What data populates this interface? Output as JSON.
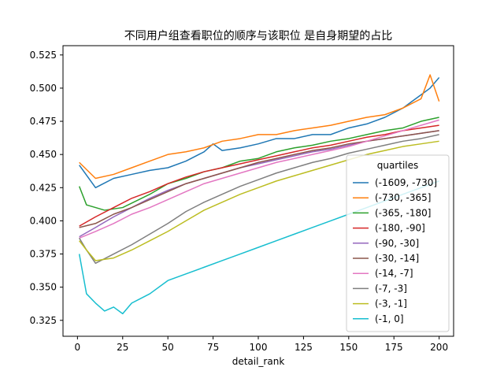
{
  "chart_data": {
    "type": "line",
    "title": "不同用户组查看职位的顺序与该职位 是自身期望的占比",
    "xlabel": "detail_rank",
    "ylabel": "",
    "xlim": [
      -8,
      208
    ],
    "ylim": [
      0.313,
      0.532
    ],
    "xticks": [
      0,
      25,
      50,
      75,
      100,
      125,
      150,
      175,
      200
    ],
    "yticks": [
      0.325,
      0.35,
      0.375,
      0.4,
      0.425,
      0.45,
      0.475,
      0.5,
      0.525
    ],
    "ytick_labels": [
      "0.325",
      "0.350",
      "0.375",
      "0.400",
      "0.425",
      "0.450",
      "0.475",
      "0.500",
      "0.525"
    ],
    "grid": false,
    "legend": {
      "title": "quartiles",
      "placement": "lower-right"
    },
    "series": [
      {
        "name": "(-1609, -730]",
        "color": "#1f77b4",
        "x": [
          1,
          10,
          20,
          30,
          40,
          50,
          60,
          70,
          75,
          80,
          90,
          100,
          110,
          120,
          130,
          140,
          150,
          160,
          170,
          180,
          185,
          190,
          195,
          200
        ],
        "y": [
          0.442,
          0.425,
          0.432,
          0.435,
          0.438,
          0.44,
          0.445,
          0.452,
          0.458,
          0.453,
          0.455,
          0.458,
          0.462,
          0.462,
          0.465,
          0.465,
          0.47,
          0.473,
          0.478,
          0.485,
          0.49,
          0.495,
          0.5,
          0.508
        ]
      },
      {
        "name": "(-730, -365]",
        "color": "#ff7f0e",
        "x": [
          1,
          10,
          20,
          30,
          40,
          50,
          60,
          70,
          80,
          90,
          100,
          110,
          120,
          130,
          140,
          150,
          160,
          170,
          180,
          190,
          195,
          200
        ],
        "y": [
          0.444,
          0.432,
          0.435,
          0.44,
          0.445,
          0.45,
          0.452,
          0.455,
          0.46,
          0.462,
          0.465,
          0.465,
          0.468,
          0.47,
          0.472,
          0.475,
          0.478,
          0.48,
          0.485,
          0.492,
          0.51,
          0.49
        ]
      },
      {
        "name": "(-365, -180]",
        "color": "#2ca02c",
        "x": [
          1,
          5,
          15,
          25,
          40,
          50,
          60,
          70,
          80,
          90,
          100,
          110,
          120,
          130,
          140,
          150,
          160,
          170,
          180,
          190,
          200
        ],
        "y": [
          0.426,
          0.412,
          0.408,
          0.41,
          0.42,
          0.428,
          0.432,
          0.437,
          0.44,
          0.445,
          0.447,
          0.452,
          0.455,
          0.457,
          0.46,
          0.462,
          0.465,
          0.468,
          0.47,
          0.475,
          0.478
        ]
      },
      {
        "name": "(-180, -90]",
        "color": "#d62728",
        "x": [
          1,
          10,
          20,
          30,
          40,
          50,
          60,
          70,
          80,
          90,
          100,
          110,
          120,
          130,
          140,
          150,
          160,
          170,
          180,
          190,
          200
        ],
        "y": [
          0.396,
          0.403,
          0.41,
          0.417,
          0.422,
          0.428,
          0.433,
          0.437,
          0.44,
          0.443,
          0.446,
          0.449,
          0.452,
          0.455,
          0.457,
          0.46,
          0.463,
          0.465,
          0.468,
          0.47,
          0.472
        ]
      },
      {
        "name": "(-90, -30]",
        "color": "#9467bd",
        "x": [
          1,
          10,
          20,
          30,
          40,
          50,
          60,
          70,
          80,
          90,
          100,
          110,
          120,
          130,
          140,
          150,
          160,
          170,
          180,
          190,
          200
        ],
        "y": [
          0.388,
          0.395,
          0.403,
          0.41,
          0.417,
          0.423,
          0.428,
          0.432,
          0.436,
          0.44,
          0.443,
          0.446,
          0.449,
          0.452,
          0.454,
          0.457,
          0.46,
          0.462,
          0.464,
          0.466,
          0.468
        ]
      },
      {
        "name": "(-30, -14]",
        "color": "#8c564b",
        "x": [
          1,
          10,
          20,
          30,
          40,
          50,
          60,
          70,
          80,
          90,
          100,
          110,
          120,
          130,
          140,
          150,
          160,
          170,
          180,
          190,
          200
        ],
        "y": [
          0.395,
          0.398,
          0.405,
          0.41,
          0.416,
          0.422,
          0.428,
          0.432,
          0.436,
          0.44,
          0.444,
          0.447,
          0.45,
          0.453,
          0.455,
          0.458,
          0.46,
          0.462,
          0.464,
          0.466,
          0.468
        ]
      },
      {
        "name": "(-14, -7]",
        "color": "#e377c2",
        "x": [
          1,
          10,
          20,
          30,
          40,
          50,
          60,
          70,
          80,
          90,
          100,
          110,
          120,
          130,
          140,
          150,
          160,
          170,
          180,
          190,
          200
        ],
        "y": [
          0.387,
          0.392,
          0.398,
          0.405,
          0.41,
          0.416,
          0.422,
          0.428,
          0.432,
          0.436,
          0.44,
          0.444,
          0.447,
          0.45,
          0.453,
          0.456,
          0.46,
          0.464,
          0.468,
          0.472,
          0.476
        ]
      },
      {
        "name": "(-7, -3]",
        "color": "#7f7f7f",
        "x": [
          1,
          5,
          10,
          20,
          30,
          40,
          50,
          60,
          70,
          80,
          90,
          100,
          110,
          120,
          130,
          140,
          150,
          160,
          170,
          180,
          190,
          200
        ],
        "y": [
          0.387,
          0.378,
          0.368,
          0.375,
          0.382,
          0.39,
          0.398,
          0.407,
          0.414,
          0.42,
          0.426,
          0.431,
          0.436,
          0.44,
          0.444,
          0.447,
          0.451,
          0.454,
          0.457,
          0.46,
          0.462,
          0.465
        ]
      },
      {
        "name": "(-3, -1]",
        "color": "#bcbd22",
        "x": [
          1,
          5,
          10,
          20,
          30,
          40,
          50,
          60,
          70,
          80,
          90,
          100,
          110,
          120,
          130,
          140,
          150,
          160,
          170,
          180,
          190,
          200
        ],
        "y": [
          0.385,
          0.378,
          0.37,
          0.372,
          0.378,
          0.385,
          0.392,
          0.4,
          0.408,
          0.414,
          0.42,
          0.425,
          0.43,
          0.434,
          0.438,
          0.442,
          0.446,
          0.45,
          0.453,
          0.456,
          0.458,
          0.46
        ]
      },
      {
        "name": "(-1, 0]",
        "color": "#17becf",
        "x": [
          1,
          5,
          10,
          15,
          20,
          25,
          30,
          40,
          50,
          60,
          70,
          80,
          90,
          100,
          110,
          120,
          130,
          140,
          150,
          160,
          170,
          180,
          190,
          200
        ],
        "y": [
          0.375,
          0.345,
          0.338,
          0.332,
          0.335,
          0.33,
          0.338,
          0.345,
          0.355,
          0.36,
          0.365,
          0.37,
          0.375,
          0.38,
          0.385,
          0.39,
          0.395,
          0.4,
          0.405,
          0.41,
          0.415,
          0.42,
          0.425,
          0.43
        ]
      }
    ]
  }
}
